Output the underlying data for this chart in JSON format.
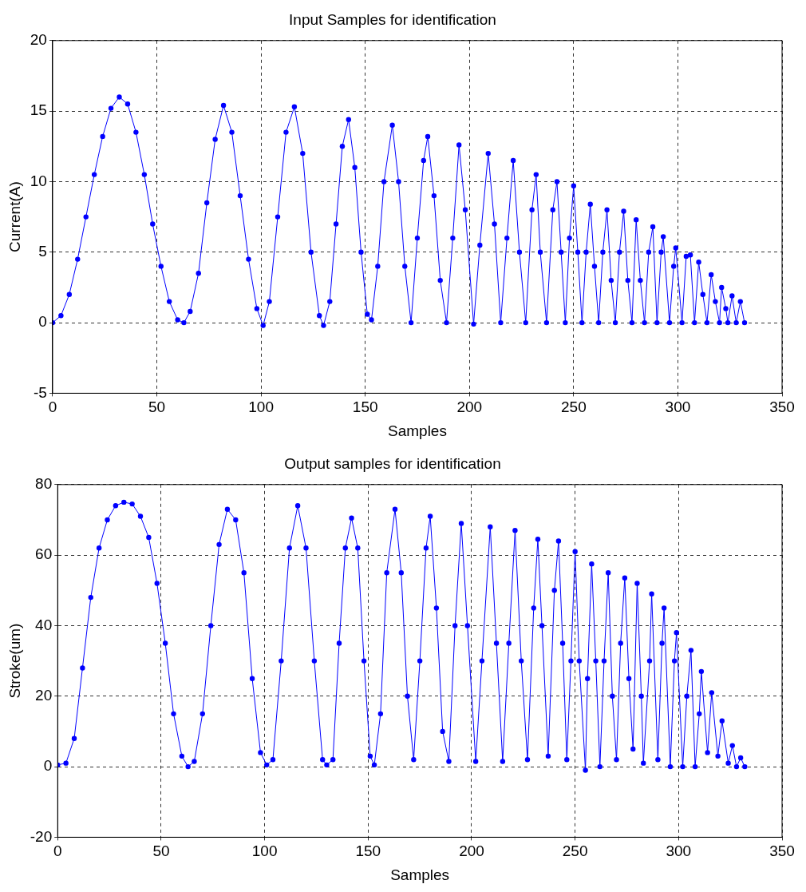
{
  "chart_data": [
    {
      "type": "line",
      "title": "Input Samples for identification",
      "xlabel": "Samples",
      "ylabel": "Current(A)",
      "xlim": [
        0,
        350
      ],
      "xticks": [
        0,
        50,
        100,
        150,
        200,
        250,
        300,
        350
      ],
      "ylim": [
        -5,
        20
      ],
      "yticks": [
        -5,
        0,
        5,
        10,
        15,
        20
      ],
      "grid": true,
      "marker": "circle",
      "line_style": "solid",
      "series": [
        {
          "color": "#0000ff",
          "x": [
            0,
            4,
            8,
            12,
            16,
            20,
            24,
            28,
            32,
            36,
            40,
            44,
            48,
            52,
            56,
            60,
            63,
            66,
            70,
            74,
            78,
            82,
            86,
            90,
            94,
            98,
            101,
            104,
            108,
            112,
            116,
            120,
            124,
            128,
            130,
            133,
            136,
            139,
            142,
            145,
            148,
            151,
            153,
            156,
            159,
            163,
            166,
            169,
            172,
            175,
            178,
            180,
            183,
            186,
            189,
            192,
            195,
            198,
            202,
            205,
            209,
            212,
            215,
            218,
            221,
            224,
            227,
            230,
            232,
            234,
            237,
            240,
            242,
            244,
            246,
            248,
            250,
            252,
            254,
            256,
            258,
            260,
            262,
            264,
            266,
            268,
            270,
            272,
            274,
            276,
            278,
            280,
            282,
            284,
            286,
            288,
            290,
            292,
            293,
            296,
            298,
            299,
            302,
            304,
            306,
            308,
            310,
            312,
            314,
            316,
            318,
            320,
            321,
            323,
            324,
            326,
            328,
            330,
            332
          ],
          "values": [
            0,
            0.5,
            2,
            4.5,
            7.5,
            10.5,
            13.2,
            15.2,
            16,
            15.5,
            13.5,
            10.5,
            7,
            4,
            1.5,
            0.2,
            0,
            0.8,
            3.5,
            8.5,
            13,
            15.4,
            13.5,
            9,
            4.5,
            1,
            -0.2,
            1.5,
            7.5,
            13.5,
            15.3,
            12,
            5,
            0.5,
            -0.2,
            1.5,
            7,
            12.5,
            14.4,
            11,
            5,
            0.6,
            0.2,
            4,
            10,
            14,
            10,
            4,
            0,
            6,
            11.5,
            13.2,
            9,
            3,
            0,
            6,
            12.6,
            8,
            -0.1,
            5.5,
            12,
            7,
            0,
            6,
            11.5,
            5,
            0,
            8,
            10.5,
            5,
            0,
            8,
            10,
            5,
            0,
            6,
            9.7,
            5,
            0,
            5,
            8.4,
            4,
            0,
            5,
            8,
            3,
            0,
            5,
            7.9,
            3,
            0,
            7.3,
            3,
            0,
            5,
            6.8,
            0,
            5,
            6.1,
            0,
            4,
            5.3,
            0,
            4.7,
            4.8,
            0,
            4.3,
            2,
            0,
            3.4,
            1.5,
            0,
            2.5,
            1,
            0,
            1.9,
            0,
            1.5,
            0
          ]
        }
      ]
    },
    {
      "type": "line",
      "title": "Output samples for identification",
      "xlabel": "Samples",
      "ylabel": "Stroke(um)",
      "xlim": [
        0,
        350
      ],
      "xticks": [
        0,
        50,
        100,
        150,
        200,
        250,
        300,
        350
      ],
      "ylim": [
        -20,
        80
      ],
      "yticks": [
        -20,
        0,
        20,
        40,
        60,
        80
      ],
      "grid": true,
      "marker": "circle",
      "line_style": "solid",
      "series": [
        {
          "color": "#0000ff",
          "x": [
            0,
            4,
            8,
            12,
            16,
            20,
            24,
            28,
            32,
            36,
            40,
            44,
            48,
            52,
            56,
            60,
            63,
            66,
            70,
            74,
            78,
            82,
            86,
            90,
            94,
            98,
            101,
            104,
            108,
            112,
            116,
            120,
            124,
            128,
            130,
            133,
            136,
            139,
            142,
            145,
            148,
            151,
            153,
            156,
            159,
            163,
            166,
            169,
            172,
            175,
            178,
            180,
            183,
            186,
            189,
            192,
            195,
            198,
            202,
            205,
            209,
            212,
            215,
            218,
            221,
            224,
            227,
            230,
            232,
            234,
            237,
            240,
            242,
            244,
            246,
            248,
            250,
            252,
            255,
            256,
            258,
            260,
            262,
            264,
            266,
            268,
            270,
            272,
            274,
            276,
            278,
            280,
            282,
            283,
            286,
            287,
            290,
            292,
            293,
            296,
            298,
            299,
            302,
            304,
            306,
            308,
            310,
            311,
            314,
            316,
            319,
            321,
            324,
            326,
            328,
            330,
            332
          ],
          "values": [
            0.5,
            1,
            8,
            28,
            48,
            62,
            70,
            74,
            75,
            74.5,
            71,
            65,
            52,
            35,
            15,
            3,
            0,
            1.5,
            15,
            40,
            63,
            73,
            70,
            55,
            25,
            4,
            0.5,
            2,
            30,
            62,
            74,
            62,
            30,
            2,
            0.5,
            2,
            35,
            62,
            70.5,
            62,
            30,
            3,
            0.5,
            15,
            55,
            73,
            55,
            20,
            2,
            30,
            62,
            71,
            45,
            10,
            1.5,
            40,
            69,
            40,
            1.5,
            30,
            68,
            35,
            1.5,
            35,
            67,
            30,
            2,
            45,
            64.5,
            40,
            3,
            50,
            64,
            35,
            2,
            30,
            61,
            30,
            -1,
            25,
            57.5,
            30,
            0,
            30,
            55,
            20,
            2,
            35,
            53.5,
            25,
            5,
            52,
            20,
            1,
            30,
            49,
            2,
            35,
            45,
            0,
            30,
            38,
            0,
            20,
            33,
            0,
            15,
            27,
            4,
            21,
            3,
            13,
            1,
            6,
            0,
            2.5,
            0
          ]
        }
      ]
    }
  ]
}
